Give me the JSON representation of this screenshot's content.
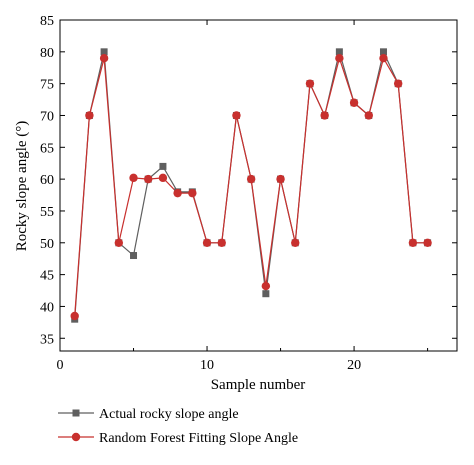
{
  "chart_data": {
    "type": "line",
    "xlabel": "Sample number",
    "ylabel": "Rocky slope angle (°)",
    "xlim": [
      0,
      27
    ],
    "ylim": [
      33,
      85
    ],
    "x_ticks": [
      0,
      10,
      20
    ],
    "y_ticks": [
      35,
      40,
      45,
      50,
      55,
      60,
      65,
      70,
      75,
      80,
      85
    ],
    "grid": false,
    "legend_position": "bottom-left below plot",
    "x": [
      1,
      2,
      3,
      4,
      5,
      6,
      7,
      8,
      9,
      10,
      11,
      12,
      13,
      14,
      15,
      16,
      17,
      18,
      19,
      20,
      21,
      22,
      23,
      24,
      25
    ],
    "series": [
      {
        "name": "Actual rocky slope angle",
        "color": "#5f5f5f",
        "marker": "square",
        "values": [
          38,
          70,
          80,
          50,
          48,
          60,
          62,
          58,
          58,
          50,
          50,
          70,
          60,
          42,
          60,
          50,
          75,
          70,
          80,
          72,
          70,
          80,
          75,
          50,
          50
        ]
      },
      {
        "name": "Random Forest Fitting Slope Angle",
        "color": "#c8302e",
        "marker": "circle",
        "values": [
          38.5,
          70,
          79,
          50,
          60.2,
          60,
          60.2,
          57.8,
          57.8,
          50,
          50,
          70,
          60,
          43.2,
          60,
          50,
          75,
          70,
          79,
          72,
          70,
          79,
          75,
          50,
          50
        ]
      }
    ]
  }
}
